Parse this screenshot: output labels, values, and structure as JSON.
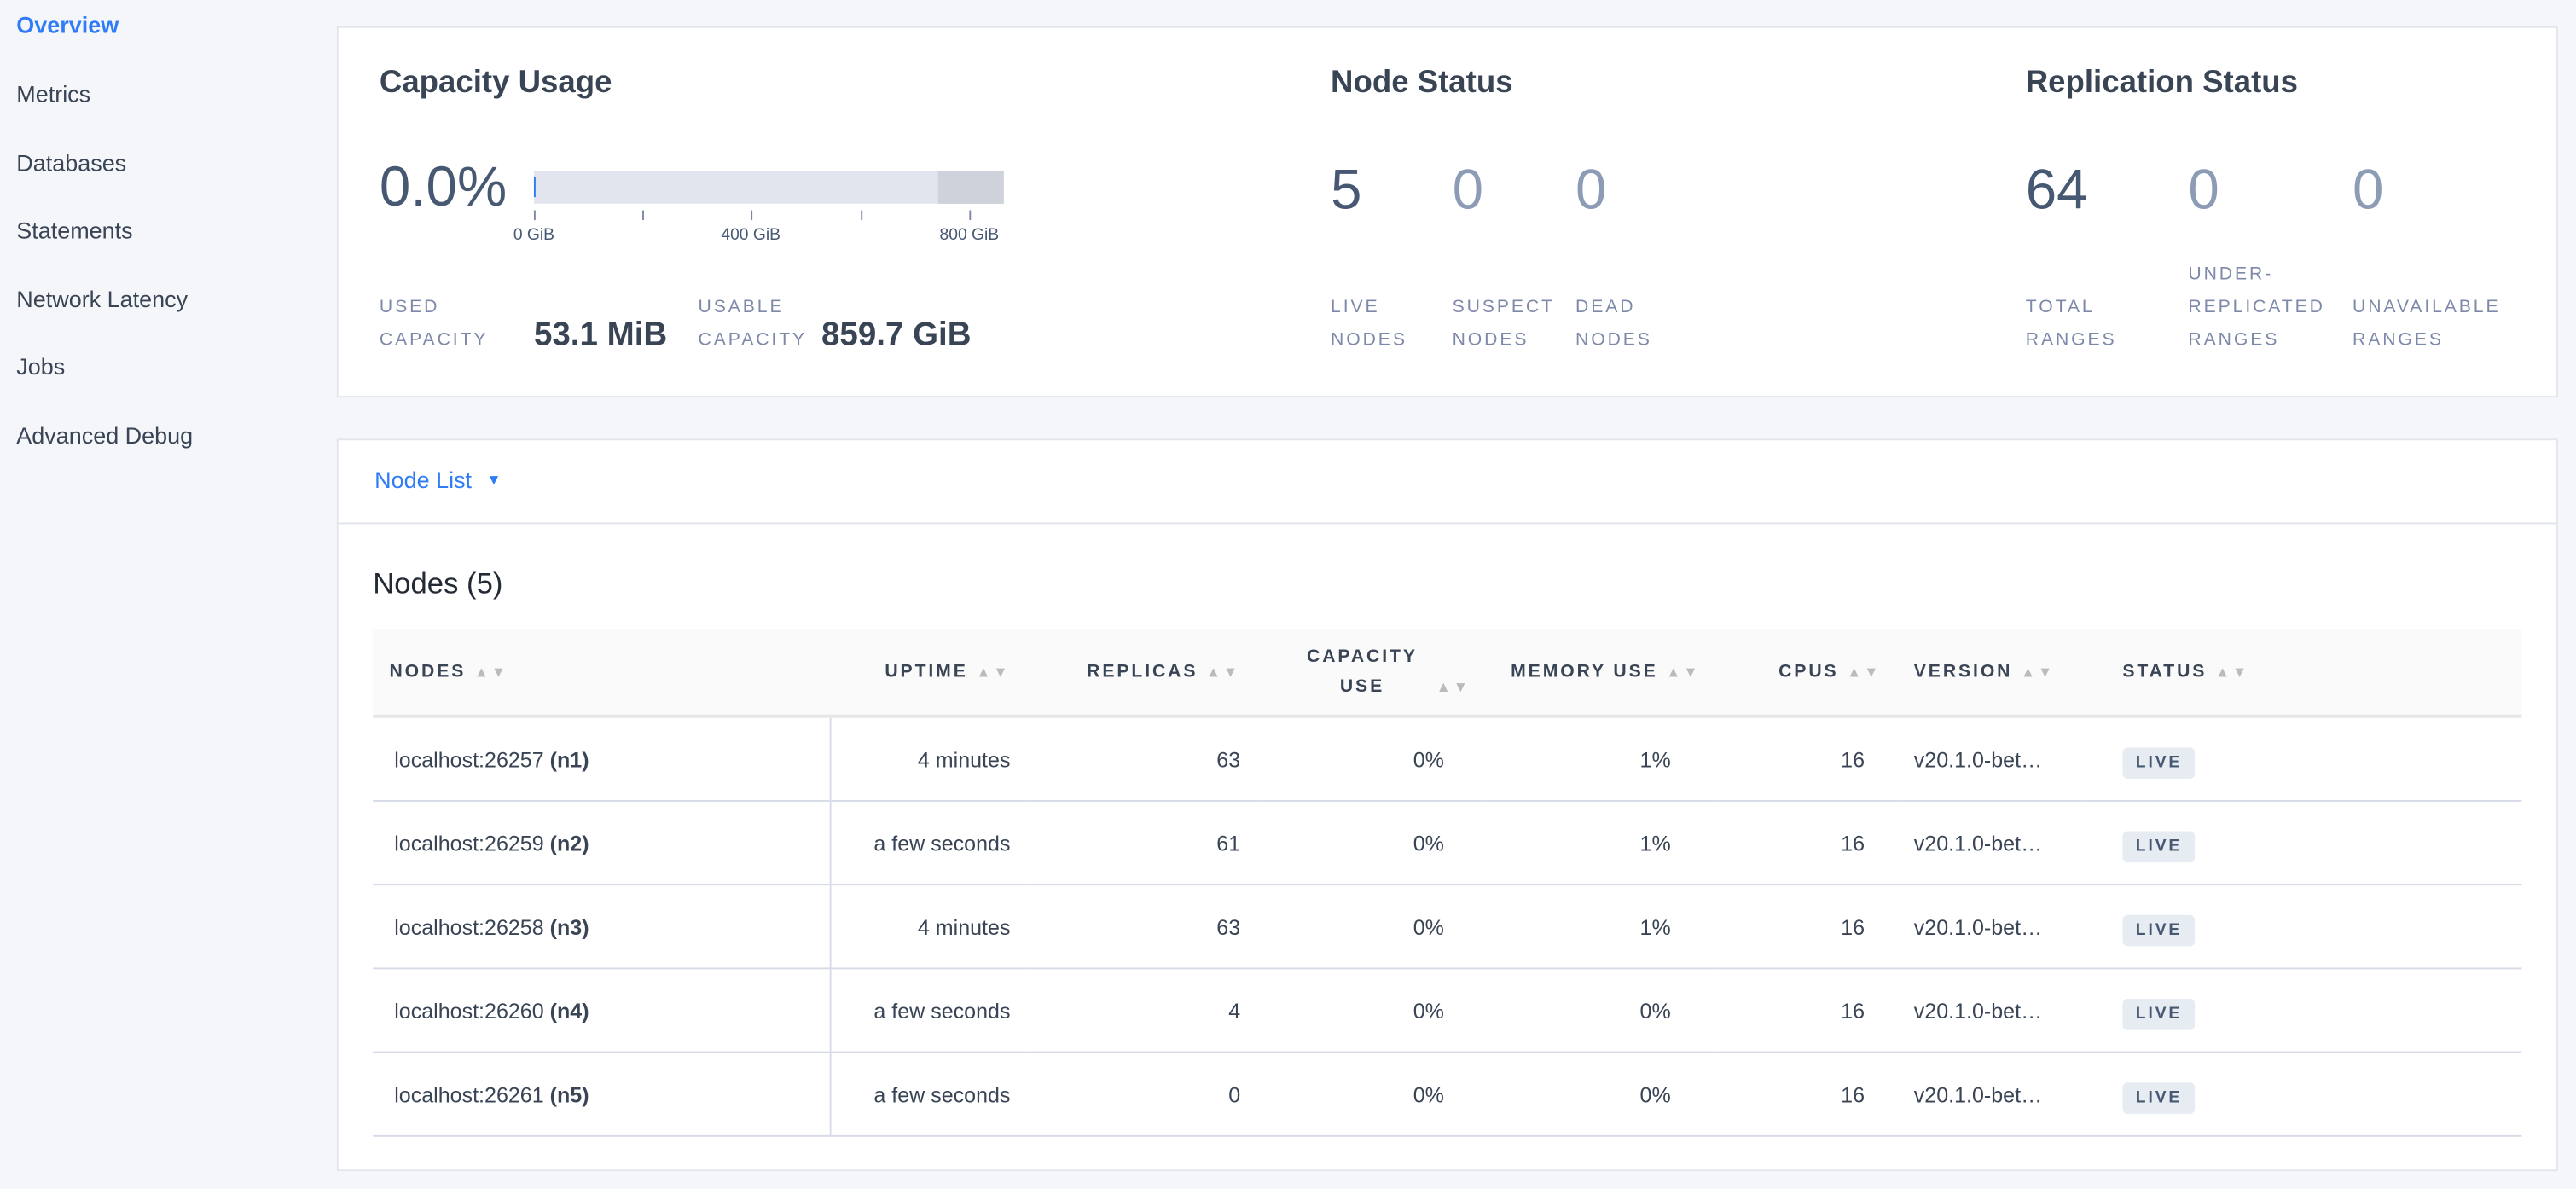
{
  "sidebar": {
    "items": [
      {
        "label": "Overview",
        "active": true
      },
      {
        "label": "Metrics"
      },
      {
        "label": "Databases"
      },
      {
        "label": "Statements"
      },
      {
        "label": "Network Latency"
      },
      {
        "label": "Jobs"
      },
      {
        "label": "Advanced Debug"
      }
    ]
  },
  "capacity": {
    "title": "Capacity Usage",
    "percent": "0.0%",
    "used_fraction": 0.0001,
    "usable_fraction_of_axis": 0.86,
    "ticks": [
      "0 GiB",
      "400 GiB",
      "800 GiB"
    ],
    "used_label_1": "USED",
    "used_label_2": "CAPACITY",
    "used_value": "53.1 MiB",
    "usable_label_1": "USABLE",
    "usable_label_2": "CAPACITY",
    "usable_value": "859.7 GiB"
  },
  "node_status": {
    "title": "Node Status",
    "live": "5",
    "suspect": "0",
    "dead": "0",
    "live_l1": "LIVE",
    "live_l2": "NODES",
    "suspect_l1": "SUSPECT",
    "suspect_l2": "NODES",
    "dead_l1": "DEAD",
    "dead_l2": "NODES"
  },
  "replication": {
    "title": "Replication Status",
    "total": "64",
    "under": "0",
    "unavailable": "0",
    "total_l1": "TOTAL",
    "total_l2": "RANGES",
    "under_l1": "UNDER-",
    "under_l2": "REPLICATED",
    "under_l3": "RANGES",
    "unav_l1": "UNAVAILABLE",
    "unav_l2": "RANGES"
  },
  "node_list": {
    "dropdown": "Node List",
    "heading": "Nodes (5)"
  },
  "table": {
    "headers": [
      "NODES",
      "UPTIME",
      "REPLICAS",
      "CAPACITY USE",
      "MEMORY USE",
      "CPUS",
      "VERSION",
      "STATUS"
    ],
    "rows": [
      {
        "addr": "localhost:26257",
        "id": "(n1)",
        "uptime": "4 minutes",
        "replicas": "63",
        "cap": "0%",
        "mem": "1%",
        "cpus": "16",
        "version": "v20.1.0-bet…",
        "status": "LIVE"
      },
      {
        "addr": "localhost:26259",
        "id": "(n2)",
        "uptime": "a few seconds",
        "replicas": "61",
        "cap": "0%",
        "mem": "1%",
        "cpus": "16",
        "version": "v20.1.0-bet…",
        "status": "LIVE"
      },
      {
        "addr": "localhost:26258",
        "id": "(n3)",
        "uptime": "4 minutes",
        "replicas": "63",
        "cap": "0%",
        "mem": "1%",
        "cpus": "16",
        "version": "v20.1.0-bet…",
        "status": "LIVE"
      },
      {
        "addr": "localhost:26260",
        "id": "(n4)",
        "uptime": "a few seconds",
        "replicas": "4",
        "cap": "0%",
        "mem": "0%",
        "cpus": "16",
        "version": "v20.1.0-bet…",
        "status": "LIVE"
      },
      {
        "addr": "localhost:26261",
        "id": "(n5)",
        "uptime": "a few seconds",
        "replicas": "0",
        "cap": "0%",
        "mem": "0%",
        "cpus": "16",
        "version": "v20.1.0-bet…",
        "status": "LIVE"
      }
    ]
  },
  "colors": {
    "accent": "#2f7cf6",
    "bar_bg": "#e2e5ee",
    "bar_reserved": "#cfd2da"
  }
}
